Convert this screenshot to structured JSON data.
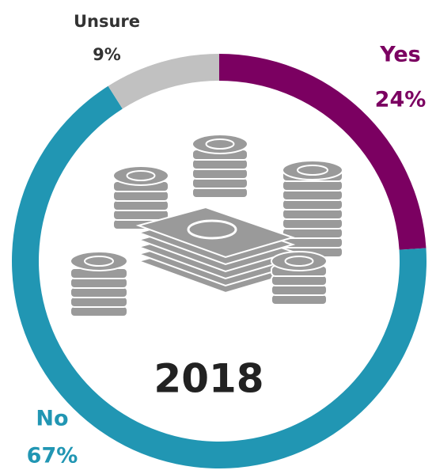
{
  "chart_data": {
    "type": "donut",
    "categories": [
      "Yes",
      "No",
      "Unsure"
    ],
    "values": [
      24,
      67,
      9
    ],
    "value_labels": [
      "24%",
      "67%",
      "9%"
    ],
    "colors": [
      "#7b0061",
      "#2196b3",
      "#c1c1c1"
    ],
    "center_text": "2018"
  }
}
